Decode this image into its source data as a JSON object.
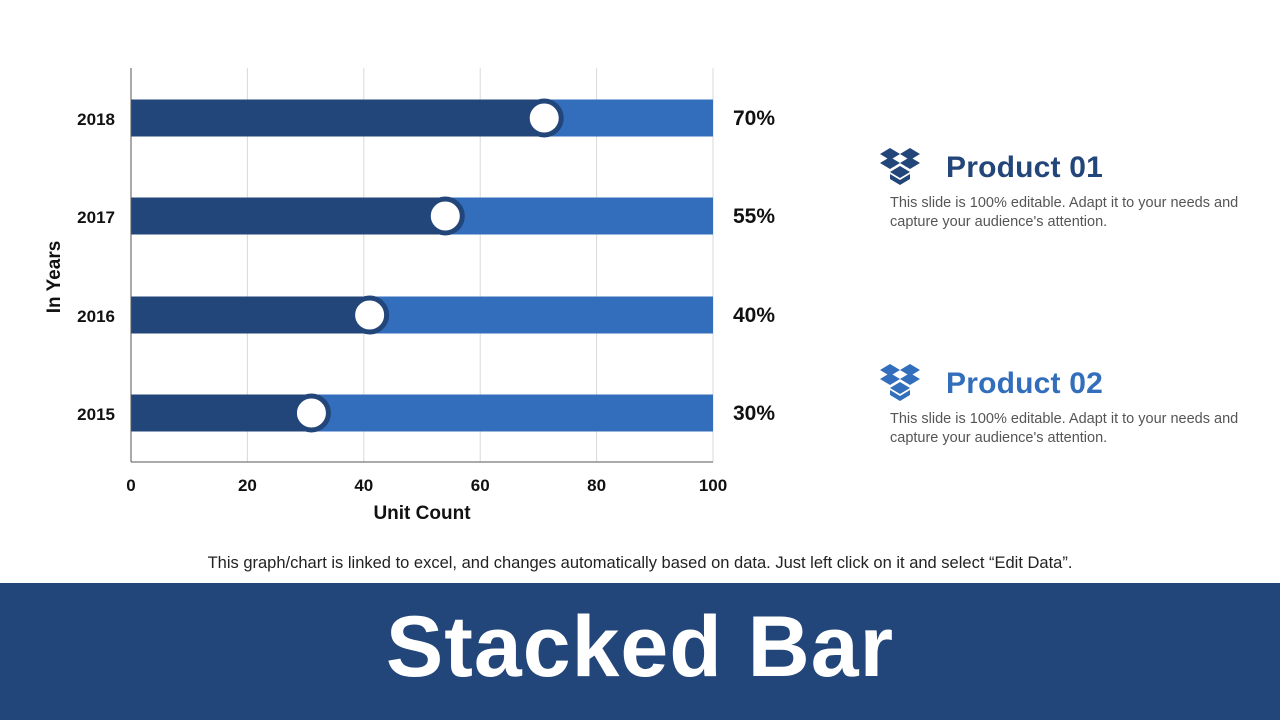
{
  "chart_data": {
    "type": "bar",
    "orientation": "horizontal",
    "stacked": true,
    "categories": [
      "2018",
      "2017",
      "2016",
      "2015"
    ],
    "series": [
      {
        "values": [
          70,
          55,
          40,
          30
        ],
        "color": "#23467A"
      },
      {
        "values": [
          30,
          45,
          60,
          70
        ],
        "color": "#336EBC"
      }
    ],
    "marker_values": [
      71,
      54,
      41,
      31
    ],
    "data_labels": [
      "70%",
      "55%",
      "40%",
      "30%"
    ],
    "xlim": [
      0,
      100
    ],
    "xticks": [
      "0",
      "20",
      "40",
      "60",
      "80",
      "100"
    ],
    "xlabel": "Unit Count",
    "ylabel": "In Years",
    "grid": "vertical"
  },
  "products": [
    {
      "title": "Product 01",
      "description": "This slide is 100% editable. Adapt it to your needs and capture your audience's attention.",
      "icon": "dropbox-icon",
      "color": "#23467A"
    },
    {
      "title": "Product 02",
      "description": "This slide is 100% editable. Adapt it to your needs and capture your audience's attention.",
      "icon": "dropbox-icon",
      "color": "#336EBC"
    }
  ],
  "footnote": "This graph/chart is linked to excel, and changes automatically based on data. Just left click on it and select “Edit Data”.",
  "title": "Stacked Bar",
  "colors": {
    "dark": "#23467A",
    "light": "#336EBC",
    "banner": "#23467A"
  }
}
